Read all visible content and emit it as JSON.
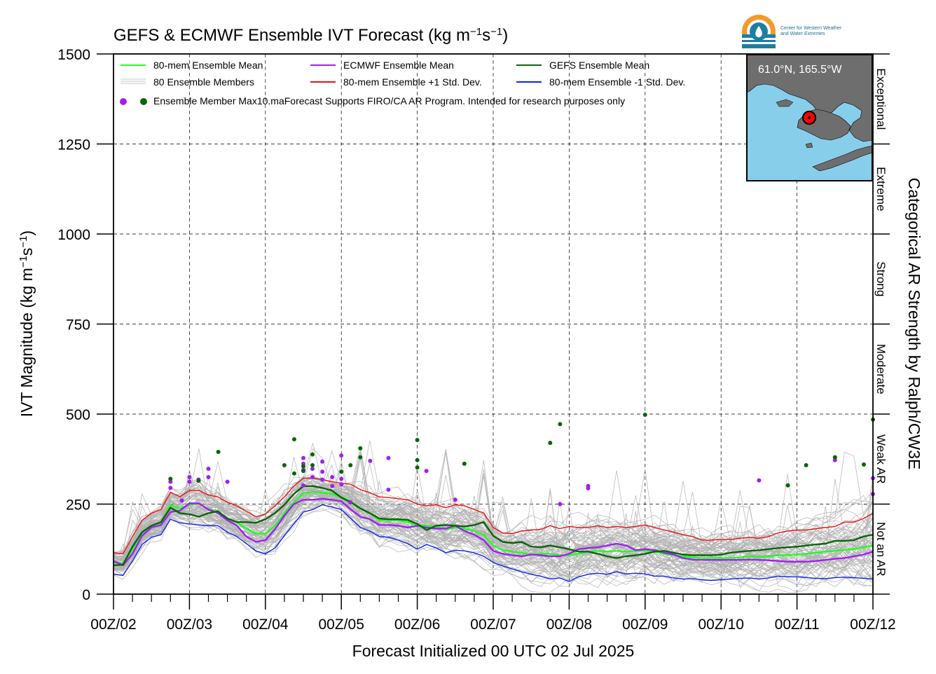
{
  "chart_data": {
    "type": "line",
    "title_prefix": "GEFS & ECMWF Ensemble IVT Forecast (kg m",
    "title_sup1": "−1",
    "title_mid": "s",
    "title_sup2": "−1",
    "title_suffix": ")",
    "xlabel": "Forecast Initialized 00 UTC 02 Jul 2025",
    "ylabel_prefix": "IVT Magnitude (kg m",
    "ylabel_sup1": "−1",
    "ylabel_mid": "s",
    "ylabel_sup2": "−1",
    "ylabel_suffix": ")",
    "right_label": "Categorical AR Strength by Ralph/CW3E",
    "xlim": [
      2,
      12
    ],
    "ylim": [
      0,
      1500
    ],
    "grid": true,
    "x_tick_labels": [
      "00Z/02",
      "00Z/03",
      "00Z/04",
      "00Z/05",
      "00Z/06",
      "00Z/07",
      "00Z/08",
      "00Z/09",
      "00Z/10",
      "00Z/11",
      "00Z/12"
    ],
    "x_tick_values": [
      2,
      3,
      4,
      5,
      6,
      7,
      8,
      9,
      10,
      11,
      12
    ],
    "y_tick_values": [
      0,
      250,
      500,
      750,
      1000,
      1250,
      1500
    ],
    "y_tick_labels": [
      "0",
      "250",
      "500",
      "750",
      "1000",
      "1250",
      "1500"
    ],
    "categories": [
      {
        "label": "Not an AR",
        "range": [
          0,
          250
        ]
      },
      {
        "label": "Weak AR",
        "range": [
          250,
          500
        ]
      },
      {
        "label": "Moderate",
        "range": [
          500,
          750
        ]
      },
      {
        "label": "Strong",
        "range": [
          750,
          1000
        ]
      },
      {
        "label": "Extreme",
        "range": [
          1000,
          1250
        ]
      },
      {
        "label": "Exceptional",
        "range": [
          1250,
          1500
        ]
      }
    ],
    "legend": {
      "mean": "80-mem Ensemble Mean",
      "members": "80 Ensemble Members",
      "ecmwf": "ECMWF Ensemble Mean",
      "plus": "80-mem Ensemble +1 Std. Dev.",
      "gefs": "GEFS Ensemble Mean",
      "minus": "80-mem Ensemble -1 Std. Dev.",
      "max_note": "Ensemble Member Max10.maForecast Supports FIRO/CA AR Program. Intended for research purposes only"
    },
    "x": [
      2.0,
      2.125,
      2.25,
      2.375,
      2.5,
      2.625,
      2.75,
      2.875,
      3.0,
      3.125,
      3.25,
      3.375,
      3.5,
      3.625,
      3.75,
      3.875,
      4.0,
      4.125,
      4.25,
      4.375,
      4.5,
      4.625,
      4.75,
      4.875,
      5.0,
      5.125,
      5.25,
      5.375,
      5.5,
      5.625,
      5.75,
      5.875,
      6.0,
      6.125,
      6.25,
      6.375,
      6.5,
      6.625,
      6.75,
      6.875,
      7.0,
      7.125,
      7.25,
      7.375,
      7.5,
      7.625,
      7.75,
      7.875,
      8.0,
      8.125,
      8.25,
      8.375,
      8.5,
      8.625,
      8.75,
      8.875,
      9.0,
      9.125,
      9.25,
      9.375,
      9.5,
      9.625,
      9.75,
      9.875,
      10.0,
      10.125,
      10.25,
      10.375,
      10.5,
      10.625,
      10.75,
      10.875,
      11.0,
      11.125,
      11.25,
      11.375,
      11.5,
      11.625,
      11.75,
      11.875,
      12.0
    ],
    "series": [
      {
        "name": "80-mem Ensemble +1 Std. Dev.",
        "color": "#ee1111",
        "width": 1.4,
        "values": [
          115,
          112,
          160,
          205,
          225,
          235,
          283,
          270,
          288,
          288,
          275,
          270,
          255,
          245,
          230,
          215,
          222,
          245,
          270,
          300,
          322,
          322,
          318,
          312,
          308,
          305,
          290,
          282,
          270,
          268,
          265,
          262,
          250,
          245,
          248,
          240,
          248,
          245,
          235,
          225,
          185,
          170,
          168,
          175,
          178,
          180,
          190,
          182,
          188,
          185,
          185,
          190,
          185,
          188,
          185,
          188,
          192,
          185,
          178,
          172,
          165,
          160,
          150,
          150,
          152,
          152,
          155,
          158,
          155,
          160,
          170,
          175,
          178,
          178,
          182,
          185,
          188,
          200,
          200,
          210,
          225
        ]
      },
      {
        "name": "80-mem Ensemble -1 Std. Dev.",
        "color": "#1122ee",
        "width": 1.4,
        "values": [
          55,
          52,
          92,
          138,
          158,
          165,
          208,
          198,
          195,
          192,
          190,
          190,
          172,
          160,
          140,
          120,
          112,
          128,
          162,
          195,
          228,
          235,
          248,
          242,
          235,
          210,
          185,
          175,
          160,
          158,
          150,
          140,
          125,
          138,
          128,
          115,
          122,
          120,
          115,
          105,
          88,
          78,
          70,
          62,
          55,
          50,
          42,
          45,
          35,
          48,
          55,
          58,
          55,
          62,
          56,
          58,
          56,
          50,
          50,
          45,
          42,
          43,
          40,
          38,
          40,
          42,
          44,
          45,
          42,
          45,
          50,
          48,
          48,
          46,
          44,
          43,
          46,
          47,
          46,
          44,
          42
        ]
      },
      {
        "name": "80-mem Ensemble Mean",
        "color": "#1fff1f",
        "width": 2.4,
        "values": [
          88,
          85,
          125,
          170,
          190,
          198,
          248,
          238,
          248,
          252,
          235,
          230,
          210,
          200,
          182,
          168,
          168,
          190,
          225,
          255,
          280,
          284,
          282,
          278,
          270,
          258,
          238,
          225,
          205,
          205,
          205,
          200,
          192,
          190,
          188,
          180,
          185,
          182,
          175,
          165,
          135,
          122,
          118,
          115,
          110,
          112,
          112,
          108,
          108,
          112,
          118,
          120,
          118,
          120,
          118,
          120,
          122,
          118,
          112,
          108,
          105,
          102,
          100,
          100,
          100,
          100,
          102,
          105,
          104,
          105,
          108,
          108,
          110,
          112,
          115,
          118,
          120,
          123,
          125,
          130,
          135
        ]
      },
      {
        "name": "ECMWF Ensemble Mean",
        "color": "#a020f0",
        "width": 2.4,
        "values": [
          92,
          80,
          112,
          162,
          185,
          192,
          228,
          232,
          252,
          252,
          235,
          225,
          205,
          190,
          160,
          145,
          150,
          180,
          218,
          250,
          262,
          262,
          265,
          262,
          258,
          235,
          215,
          208,
          192,
          192,
          190,
          185,
          190,
          185,
          182,
          182,
          190,
          175,
          165,
          150,
          120,
          112,
          108,
          105,
          110,
          108,
          105,
          105,
          112,
          125,
          128,
          130,
          135,
          140,
          135,
          122,
          125,
          122,
          115,
          110,
          100,
          96,
          95,
          95,
          95,
          95,
          95,
          96,
          95,
          94,
          92,
          90,
          90,
          90,
          92,
          95,
          98,
          100,
          105,
          110,
          118
        ]
      },
      {
        "name": "GEFS Ensemble Mean",
        "color": "#0a640a",
        "width": 2.4,
        "values": [
          80,
          82,
          132,
          172,
          190,
          200,
          240,
          225,
          222,
          215,
          225,
          230,
          210,
          200,
          200,
          198,
          208,
          225,
          248,
          278,
          300,
          300,
          295,
          288,
          268,
          255,
          238,
          225,
          210,
          208,
          208,
          206,
          195,
          178,
          190,
          192,
          190,
          188,
          192,
          200,
          162,
          145,
          142,
          145,
          132,
          130,
          135,
          130,
          125,
          118,
          118,
          112,
          105,
          100,
          105,
          108,
          112,
          118,
          120,
          115,
          110,
          108,
          108,
          108,
          110,
          115,
          118,
          120,
          122,
          125,
          128,
          130,
          132,
          135,
          138,
          140,
          148,
          148,
          150,
          160,
          165
        ]
      }
    ],
    "ecmwf_max_points": [
      [
        2.75,
        295
      ],
      [
        2.75,
        312
      ],
      [
        2.9,
        260
      ],
      [
        3.0,
        325
      ],
      [
        3.0,
        312
      ],
      [
        3.12,
        318
      ],
      [
        3.25,
        348
      ],
      [
        3.25,
        325
      ],
      [
        3.5,
        312
      ],
      [
        4.5,
        378
      ],
      [
        4.5,
        362
      ],
      [
        4.5,
        345
      ],
      [
        4.5,
        302
      ],
      [
        4.62,
        348
      ],
      [
        4.62,
        325
      ],
      [
        4.75,
        368
      ],
      [
        4.75,
        340
      ],
      [
        4.75,
        318
      ],
      [
        4.88,
        325
      ],
      [
        4.88,
        300
      ],
      [
        5.0,
        385
      ],
      [
        5.0,
        320
      ],
      [
        5.0,
        305
      ],
      [
        5.12,
        255
      ],
      [
        5.38,
        370
      ],
      [
        5.62,
        378
      ],
      [
        5.62,
        290
      ],
      [
        6.12,
        342
      ],
      [
        6.5,
        262
      ],
      [
        7.88,
        250
      ],
      [
        8.25,
        300
      ],
      [
        8.25,
        294
      ],
      [
        10.5,
        316
      ],
      [
        11.5,
        372
      ],
      [
        12.0,
        322
      ],
      [
        12.0,
        278
      ]
    ],
    "gefs_max_points": [
      [
        2.75,
        320
      ],
      [
        3.12,
        315
      ],
      [
        3.38,
        395
      ],
      [
        4.25,
        358
      ],
      [
        4.38,
        430
      ],
      [
        4.38,
        335
      ],
      [
        4.5,
        355
      ],
      [
        4.5,
        342
      ],
      [
        4.62,
        388
      ],
      [
        4.62,
        358
      ],
      [
        5.0,
        340
      ],
      [
        5.12,
        358
      ],
      [
        5.25,
        405
      ],
      [
        5.25,
        380
      ],
      [
        6.0,
        428
      ],
      [
        6.0,
        372
      ],
      [
        6.0,
        352
      ],
      [
        6.62,
        362
      ],
      [
        7.75,
        420
      ],
      [
        7.88,
        472
      ],
      [
        9.0,
        498
      ],
      [
        10.88,
        302
      ],
      [
        11.12,
        358
      ],
      [
        11.5,
        380
      ],
      [
        11.88,
        360
      ],
      [
        12.0,
        485
      ]
    ],
    "map_label": "61.0°N, 165.5°W",
    "logo_line1": "Center for Western Weather",
    "logo_line2": "and Water Extremes",
    "colors": {
      "members": "#b0b0b0",
      "ecmwf_points": "#a020f0",
      "gefs_points": "#0a640a",
      "ocean": "#87ceeb",
      "land": "#6e6e6e",
      "marker": "#ff0000"
    }
  }
}
